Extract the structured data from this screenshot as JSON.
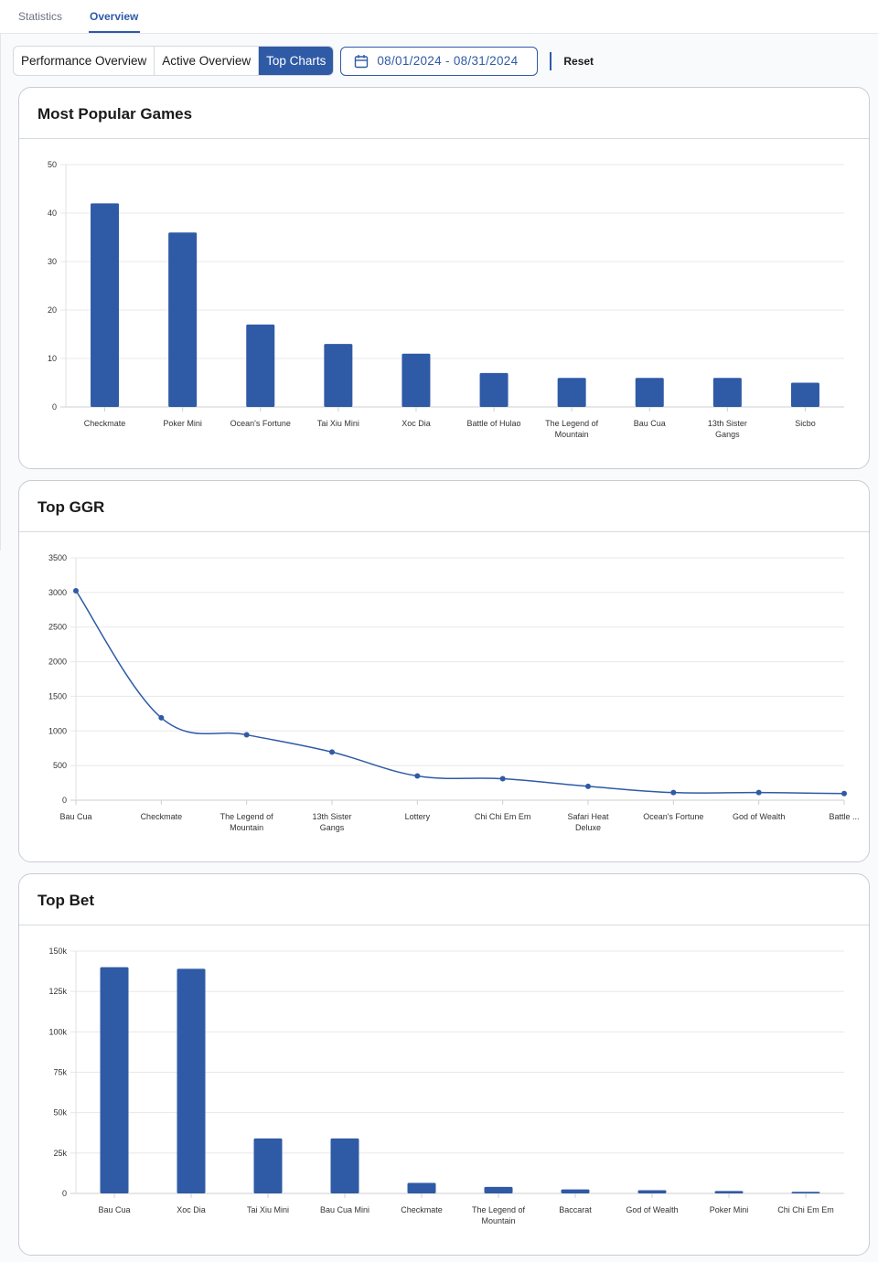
{
  "tabs": [
    {
      "label": "Statistics",
      "active": false
    },
    {
      "label": "Overview",
      "active": true
    }
  ],
  "toolbar": {
    "segments": [
      {
        "label": "Performance Overview",
        "active": false
      },
      {
        "label": "Active Overview",
        "active": false
      },
      {
        "label": "Top Charts",
        "active": true
      }
    ],
    "date_range": "08/01/2024 - 08/31/2024",
    "date_icon": "calendar-icon",
    "reset_label": "Reset"
  },
  "colors": {
    "accent": "#2f5aa6",
    "bar": "#2f5aa6",
    "grid": "#e8e8e8"
  },
  "cards": {
    "popular": {
      "title": "Most Popular Games"
    },
    "ggr": {
      "title": "Top GGR"
    },
    "bet": {
      "title": "Top Bet"
    }
  },
  "chart_data": [
    {
      "type": "bar",
      "title": "Most Popular Games",
      "categories": [
        "Checkmate",
        "Poker Mini",
        "Ocean's Fortune",
        "Tai Xiu Mini",
        "Xoc Dia",
        "Battle of Hulao",
        "The Legend of Mountain",
        "Bau Cua",
        "13th Sister Gangs",
        "Sicbo"
      ],
      "values": [
        42,
        36,
        17,
        13,
        11,
        7,
        6,
        6,
        6,
        5
      ],
      "yticks": [
        "0",
        "10",
        "20",
        "30",
        "40",
        "50"
      ],
      "ylim": [
        0,
        50
      ],
      "xlabel": "",
      "ylabel": "",
      "grid": true
    },
    {
      "type": "line",
      "title": "Top GGR",
      "categories": [
        "Bau Cua",
        "Checkmate",
        "The Legend of Mountain",
        "13th Sister Gangs",
        "Lottery",
        "Chi Chi Em Em",
        "Safari Heat Deluxe",
        "Ocean's Fortune",
        "God of Wealth",
        "Battle ..."
      ],
      "values": [
        3025,
        1190,
        945,
        695,
        350,
        310,
        200,
        110,
        110,
        95
      ],
      "yticks": [
        "0",
        "500",
        "1000",
        "1500",
        "2000",
        "2500",
        "3000",
        "3500"
      ],
      "ylim": [
        0,
        3500
      ],
      "xlabel": "",
      "ylabel": "",
      "grid": true,
      "smooth": true
    },
    {
      "type": "bar",
      "title": "Top Bet",
      "categories": [
        "Bau Cua",
        "Xoc Dia",
        "Tai Xiu Mini",
        "Bau Cua Mini",
        "Checkmate",
        "The Legend of Mountain",
        "Baccarat",
        "God of Wealth",
        "Poker Mini",
        "Chi Chi Em Em"
      ],
      "values": [
        140000,
        139000,
        34000,
        34000,
        6500,
        4000,
        2500,
        2000,
        1500,
        1000
      ],
      "yticks": [
        "0",
        "25k",
        "50k",
        "75k",
        "100k",
        "125k",
        "150k"
      ],
      "ylim": [
        0,
        150000
      ],
      "xlabel": "",
      "ylabel": "",
      "grid": true
    }
  ]
}
